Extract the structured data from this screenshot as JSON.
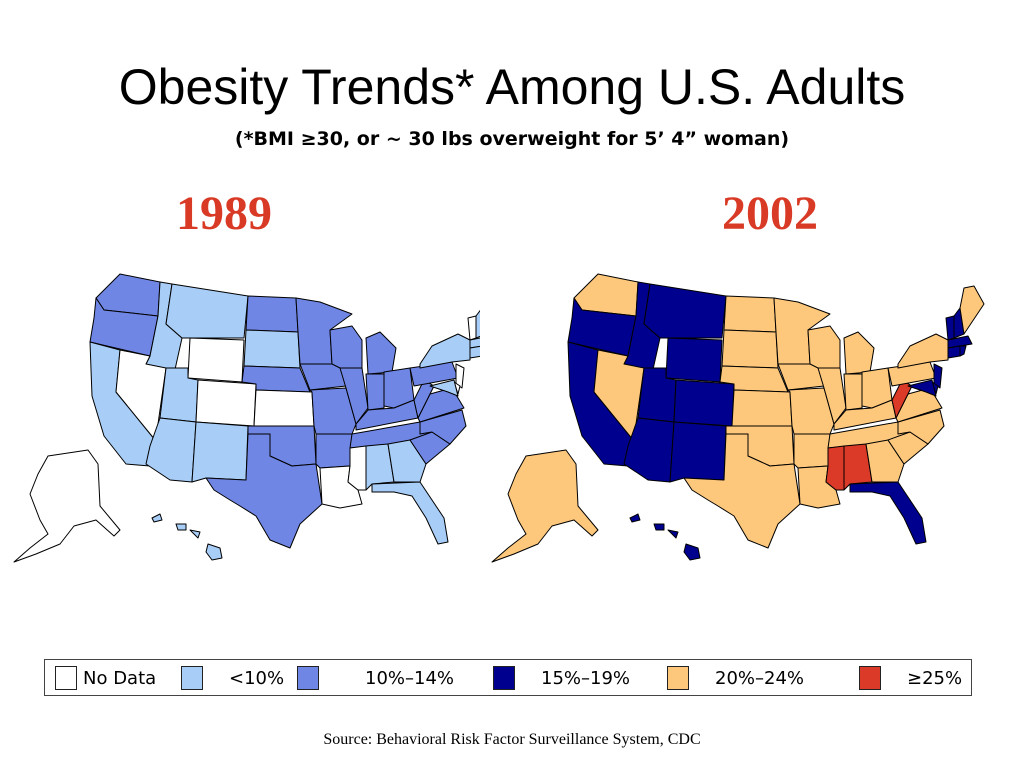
{
  "title": "Obesity Trends* Among U.S. Adults",
  "subtitle": "(*BMI ≥30, or ~ 30 lbs overweight for 5’ 4” woman)",
  "maps": [
    {
      "year": "1989"
    },
    {
      "year": "2002"
    }
  ],
  "legend": [
    {
      "label": "No Data",
      "color": "#ffffff"
    },
    {
      "label": "<10%",
      "color": "#a8cdf6"
    },
    {
      "label": "10%–14%",
      "color": "#6f86e4"
    },
    {
      "label": "15%–19%",
      "color": "#00008f"
    },
    {
      "label": "20%–24%",
      "color": "#fec87c"
    },
    {
      "label": "≥25%",
      "color": "#da3a27"
    }
  ],
  "source": "Source: Behavioral Risk Factor Surveillance System, CDC"
}
